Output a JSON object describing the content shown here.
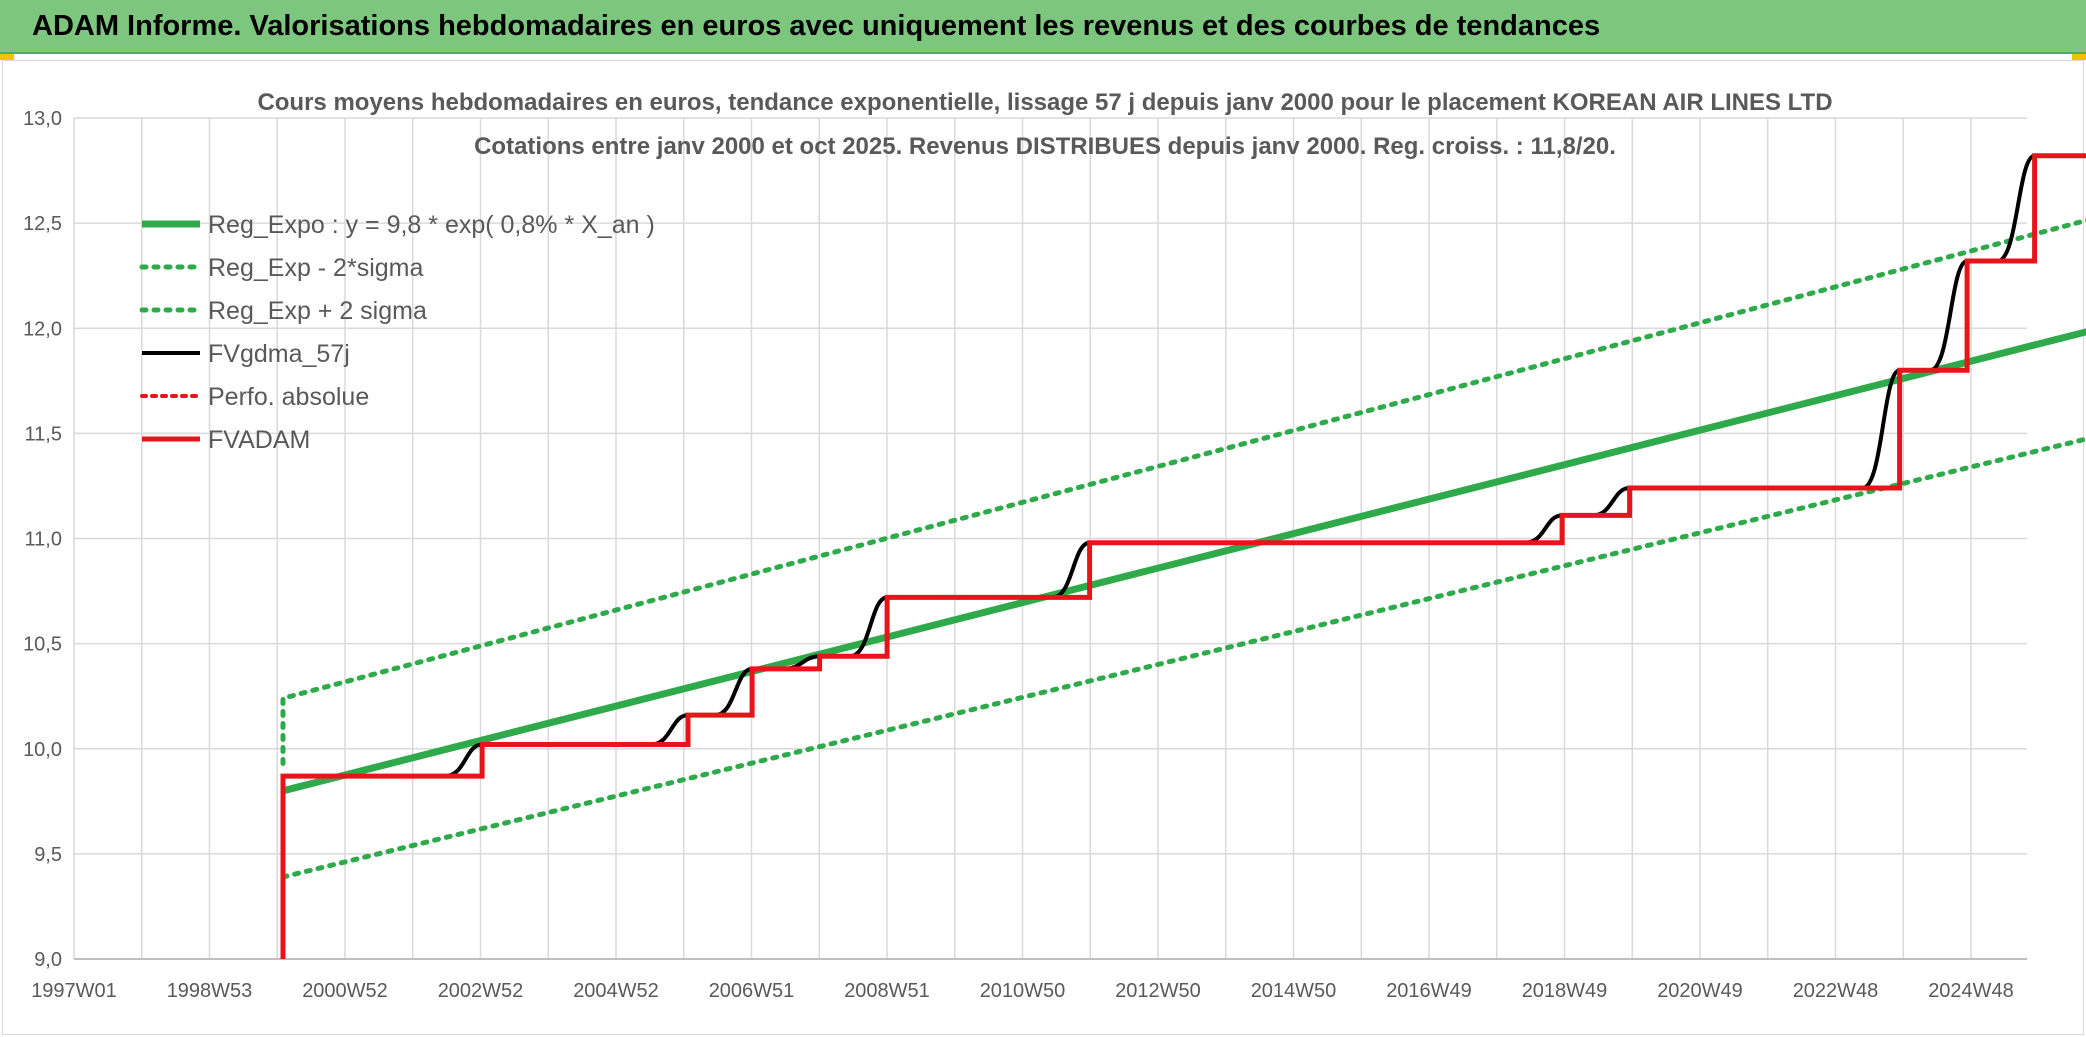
{
  "header": {
    "title": "ADAM Informe. Valorisations hebdomadaires en euros avec uniquement les revenus et des courbes de tendances"
  },
  "colors": {
    "header_bg": "#7dc67e",
    "trend_green": "#2eaa4a",
    "red": "#e8141b",
    "black": "#000000",
    "grid": "#d9d9d9",
    "axis_text": "#595959"
  },
  "chart_data": {
    "type": "line",
    "title": "Cours moyens hebdomadaires en euros, tendance exponentielle, lissage 57 j depuis janv 2000 pour le placement KOREAN AIR LINES LTD",
    "subtitle": "Cotations entre janv 2000 et oct 2025. Revenus DISTRIBUES depuis janv 2000. Reg. croiss. : 11,8/20.",
    "xlabel": "",
    "ylabel": "",
    "x_tick_labels": [
      "1997W01",
      "1998W53",
      "2000W52",
      "2002W52",
      "2004W52",
      "2006W51",
      "2008W51",
      "2010W50",
      "2012W50",
      "2014W50",
      "2016W49",
      "2018W49",
      "2020W49",
      "2022W48",
      "2024W48"
    ],
    "x_range": [
      1997.0,
      2026.8
    ],
    "ylim": [
      9.0,
      13.0
    ],
    "y_ticks": [
      "9,0",
      "9,5",
      "10,0",
      "10,5",
      "11,0",
      "11,5",
      "12,0",
      "12,5",
      "13,0"
    ],
    "grid": true,
    "legend_position": "top-left",
    "series": [
      {
        "name": "Reg_Expo : y = 9,8 * exp( 0,8% *  X_an )",
        "style": "solid-thick-green",
        "x": [
          2000.0,
          2026.8
        ],
        "y": [
          9.8,
          11.99
        ]
      },
      {
        "name": "Reg_Exp - 2*sigma",
        "style": "dotted-green",
        "x": [
          2000.0,
          2026.8
        ],
        "y": [
          9.39,
          11.48
        ]
      },
      {
        "name": "Reg_Exp + 2 sigma",
        "style": "dotted-green",
        "x": [
          2000.0,
          2000.0,
          2026.8
        ],
        "y": [
          9.93,
          10.24,
          12.52
        ]
      },
      {
        "name": "FVgdma_57j",
        "style": "solid-black"
      },
      {
        "name": "Perfo. absolue",
        "style": "dotted-red"
      },
      {
        "name": "FVADAM",
        "style": "solid-thick-red",
        "x": [
          2000.0,
          2000.0,
          2002.95,
          2002.95,
          2006.0,
          2006.0,
          2006.95,
          2006.95,
          2007.95,
          2007.95,
          2008.95,
          2008.95,
          2011.95,
          2011.95,
          2018.95,
          2018.95,
          2019.95,
          2019.95,
          2023.95,
          2023.95,
          2024.95,
          2024.95,
          2025.95,
          2025.95,
          2026.8
        ],
        "y": [
          9.0,
          9.87,
          9.87,
          10.02,
          10.02,
          10.16,
          10.16,
          10.38,
          10.38,
          10.44,
          10.44,
          10.72,
          10.72,
          10.98,
          10.98,
          11.11,
          11.11,
          11.24,
          11.24,
          11.8,
          11.8,
          12.32,
          12.32,
          12.82,
          12.82
        ]
      }
    ]
  }
}
